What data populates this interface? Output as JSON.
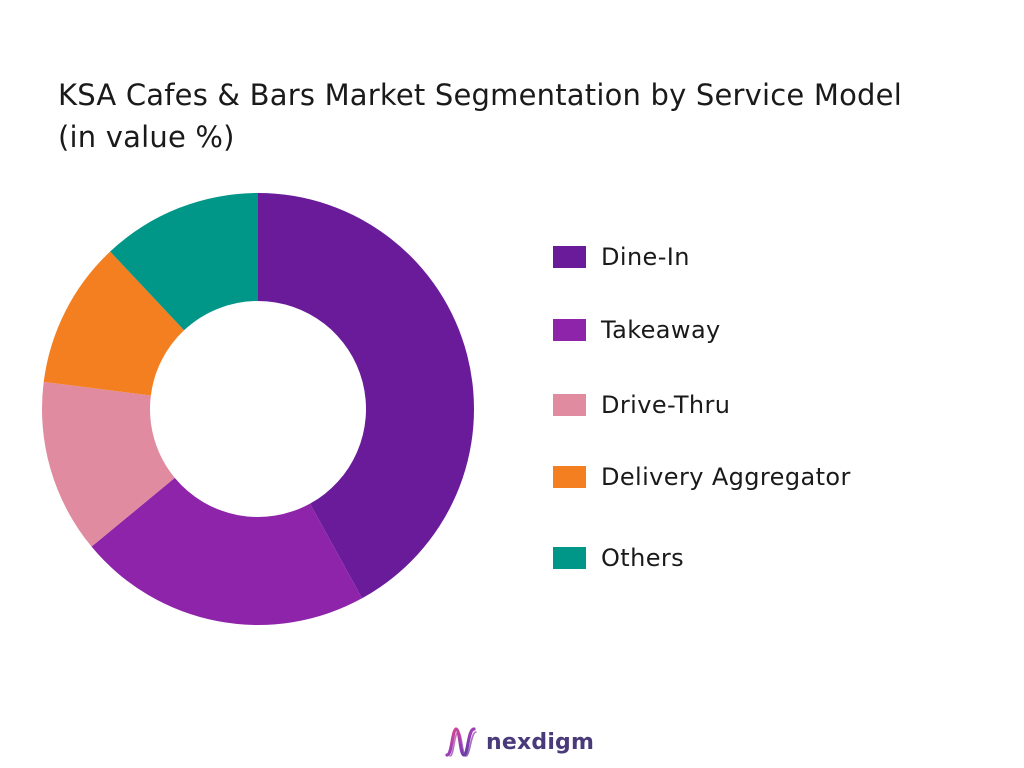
{
  "chart_data": {
    "type": "pie",
    "title": "KSA Cafes & Bars Market Segmentation by Service Model (in value %)",
    "categories": [
      "Dine-In",
      "Takeaway",
      "Drive-Thru",
      "Delivery Aggregator",
      "Others"
    ],
    "values": [
      42,
      22,
      13,
      11,
      12
    ],
    "colors": [
      "#6a1b9a",
      "#8e24aa",
      "#e08ba0",
      "#f47f20",
      "#009688"
    ],
    "legend_position": "right",
    "donut": true
  },
  "brand": {
    "name": "nexdigm",
    "icon": "nexdigm-logo-icon"
  }
}
